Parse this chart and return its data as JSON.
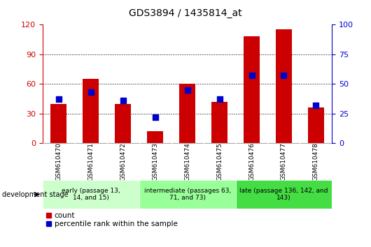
{
  "title": "GDS3894 / 1435814_at",
  "samples": [
    "GSM610470",
    "GSM610471",
    "GSM610472",
    "GSM610473",
    "GSM610474",
    "GSM610475",
    "GSM610476",
    "GSM610477",
    "GSM610478"
  ],
  "counts": [
    40,
    65,
    40,
    12,
    60,
    42,
    108,
    115,
    36
  ],
  "percentile_ranks": [
    37,
    43,
    36,
    22,
    45,
    37,
    57,
    57,
    32
  ],
  "ylim_left": [
    0,
    120
  ],
  "ylim_right": [
    0,
    100
  ],
  "yticks_left": [
    0,
    30,
    60,
    90,
    120
  ],
  "yticks_right": [
    0,
    25,
    50,
    75,
    100
  ],
  "left_color": "#cc0000",
  "right_color": "#0000cc",
  "grid_color": "black",
  "plot_bg": "#ffffff",
  "groups": [
    {
      "label": "early (passage 13,\n14, and 15)",
      "start": 0,
      "end": 3,
      "color": "#ccffcc"
    },
    {
      "label": "intermediate (passages 63,\n71, and 73)",
      "start": 3,
      "end": 6,
      "color": "#99ff99"
    },
    {
      "label": "late (passage 136, 142, and\n143)",
      "start": 6,
      "end": 9,
      "color": "#44dd44"
    }
  ],
  "dev_stage_label": "development stage",
  "legend_count_label": "count",
  "legend_pct_label": "percentile rank within the sample",
  "bar_width": 0.5,
  "percentile_marker_size": 30,
  "tick_area_color": "#d0d0d0",
  "group_border_color": "#888888",
  "title_fontsize": 10,
  "tick_fontsize": 6.5,
  "group_fontsize": 6.5,
  "axis_fontsize": 8,
  "legend_fontsize": 7.5
}
